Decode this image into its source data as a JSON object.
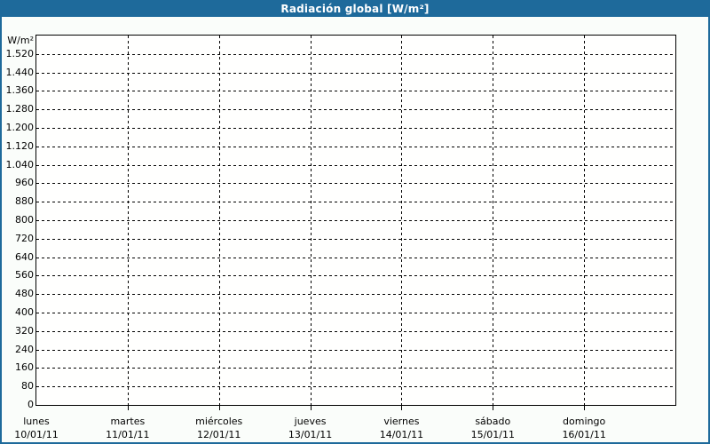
{
  "window": {
    "title": "Radiación global [W/m²]"
  },
  "colors": {
    "accent_blue": "#1e6a9b",
    "grid_black": "#000000",
    "plot_bg": "#ffffff",
    "page_bg": "#fafdfa",
    "title_text": "#ffffff"
  },
  "y_axis": {
    "unit_label": "W/m²",
    "max_value": 1600,
    "step": 80,
    "tick_labels": [
      "1.520",
      "1.440",
      "1.360",
      "1.280",
      "1.200",
      "1.120",
      "1.040",
      "960",
      "880",
      "800",
      "720",
      "640",
      "560",
      "480",
      "400",
      "320",
      "240",
      "160",
      "80",
      "0"
    ]
  },
  "x_axis": {
    "days": [
      {
        "name": "lunes",
        "date": "10/01/11"
      },
      {
        "name": "martes",
        "date": "11/01/11"
      },
      {
        "name": "miércoles",
        "date": "12/01/11"
      },
      {
        "name": "jueves",
        "date": "13/01/11"
      },
      {
        "name": "viernes",
        "date": "14/01/11"
      },
      {
        "name": "sábado",
        "date": "15/01/11"
      },
      {
        "name": "domingo",
        "date": "16/01/11"
      }
    ]
  },
  "chart_data": {
    "type": "line",
    "title": "Radiación global [W/m²]",
    "xlabel": "",
    "ylabel": "W/m²",
    "ylim": [
      0,
      1600
    ],
    "y_tick_step": 80,
    "y_tick_labels": [
      "1.520",
      "1.440",
      "1.360",
      "1.280",
      "1.200",
      "1.120",
      "1.040",
      "960",
      "880",
      "800",
      "720",
      "640",
      "560",
      "480",
      "400",
      "320",
      "240",
      "160",
      "80",
      "0"
    ],
    "categories": [
      "lunes 10/01/11",
      "martes 11/01/11",
      "miércoles 12/01/11",
      "jueves 13/01/11",
      "viernes 14/01/11",
      "sábado 15/01/11",
      "domingo 16/01/11"
    ],
    "series": [],
    "grid": "dashed",
    "legend_position": "none"
  }
}
